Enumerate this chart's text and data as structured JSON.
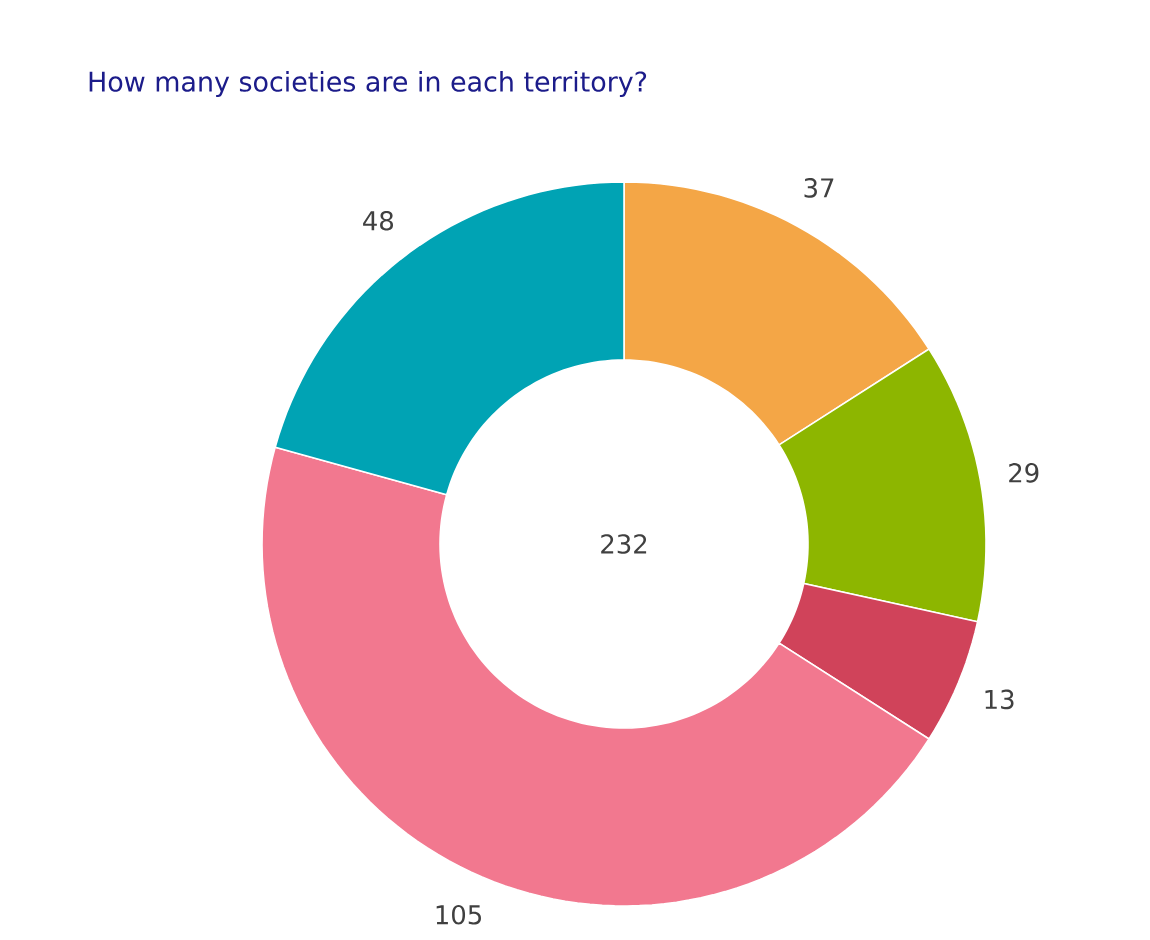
{
  "chart_data": {
    "type": "donut",
    "title": "How many societies are in each territory?",
    "categories": [
      null,
      null,
      null,
      null,
      null
    ],
    "values": [
      37,
      29,
      13,
      105,
      48
    ],
    "colors": [
      "#f4a646",
      "#8db600",
      "#d0435a",
      "#f2788f",
      "#00a3b4"
    ],
    "data_labels": true,
    "annotations": [
      "232"
    ]
  }
}
